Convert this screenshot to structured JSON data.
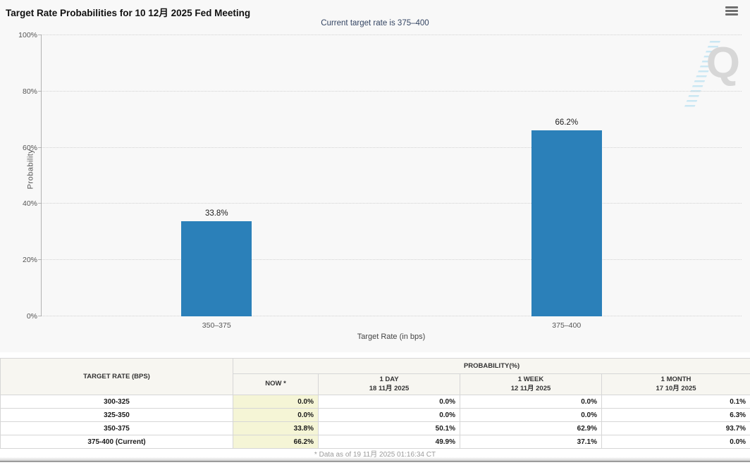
{
  "header": {
    "title": "Target Rate Probabilities for 10 12月 2025 Fed Meeting",
    "subtitle": "Current target rate is 375–400"
  },
  "chart_data": {
    "type": "bar",
    "categories": [
      "350–375",
      "375–400"
    ],
    "values": [
      33.8,
      66.2
    ],
    "bar_labels": [
      "33.8%",
      "66.2%"
    ],
    "xlabel": "Target Rate (in bps)",
    "ylabel": "Probability",
    "ylim": [
      0,
      100
    ],
    "yticks": [
      "0%",
      "20%",
      "40%",
      "60%",
      "80%",
      "100%"
    ],
    "grid": "horizontal-dotted",
    "legend": "none",
    "bar_color": "#2b80b9",
    "watermark_letter": "Q"
  },
  "table": {
    "col1_header": "TARGET RATE (BPS)",
    "group_header": "PROBABILITY(%)",
    "columns": [
      {
        "label": "NOW *",
        "sub": ""
      },
      {
        "label": "1 DAY",
        "sub": "18 11月 2025"
      },
      {
        "label": "1 WEEK",
        "sub": "12 11月 2025"
      },
      {
        "label": "1 MONTH",
        "sub": "17 10月 2025"
      }
    ],
    "rows": [
      {
        "rate": "300-325",
        "values": [
          "0.0%",
          "0.0%",
          "0.0%",
          "0.1%"
        ]
      },
      {
        "rate": "325-350",
        "values": [
          "0.0%",
          "0.0%",
          "0.0%",
          "6.3%"
        ]
      },
      {
        "rate": "350-375",
        "values": [
          "33.8%",
          "50.1%",
          "62.9%",
          "93.7%"
        ]
      },
      {
        "rate": "375-400 (Current)",
        "values": [
          "66.2%",
          "49.9%",
          "37.1%",
          "0.0%"
        ]
      }
    ]
  },
  "footer": {
    "note": "* Data as of 19 11月 2025 01:16:34 CT"
  },
  "colors": {
    "bar": "#2b80b9",
    "now_highlight": "#f5f5d6",
    "table_header_bg": "#f7f6f1",
    "subtitle_text": "#344563",
    "section_bg": "#f8f8f8"
  }
}
